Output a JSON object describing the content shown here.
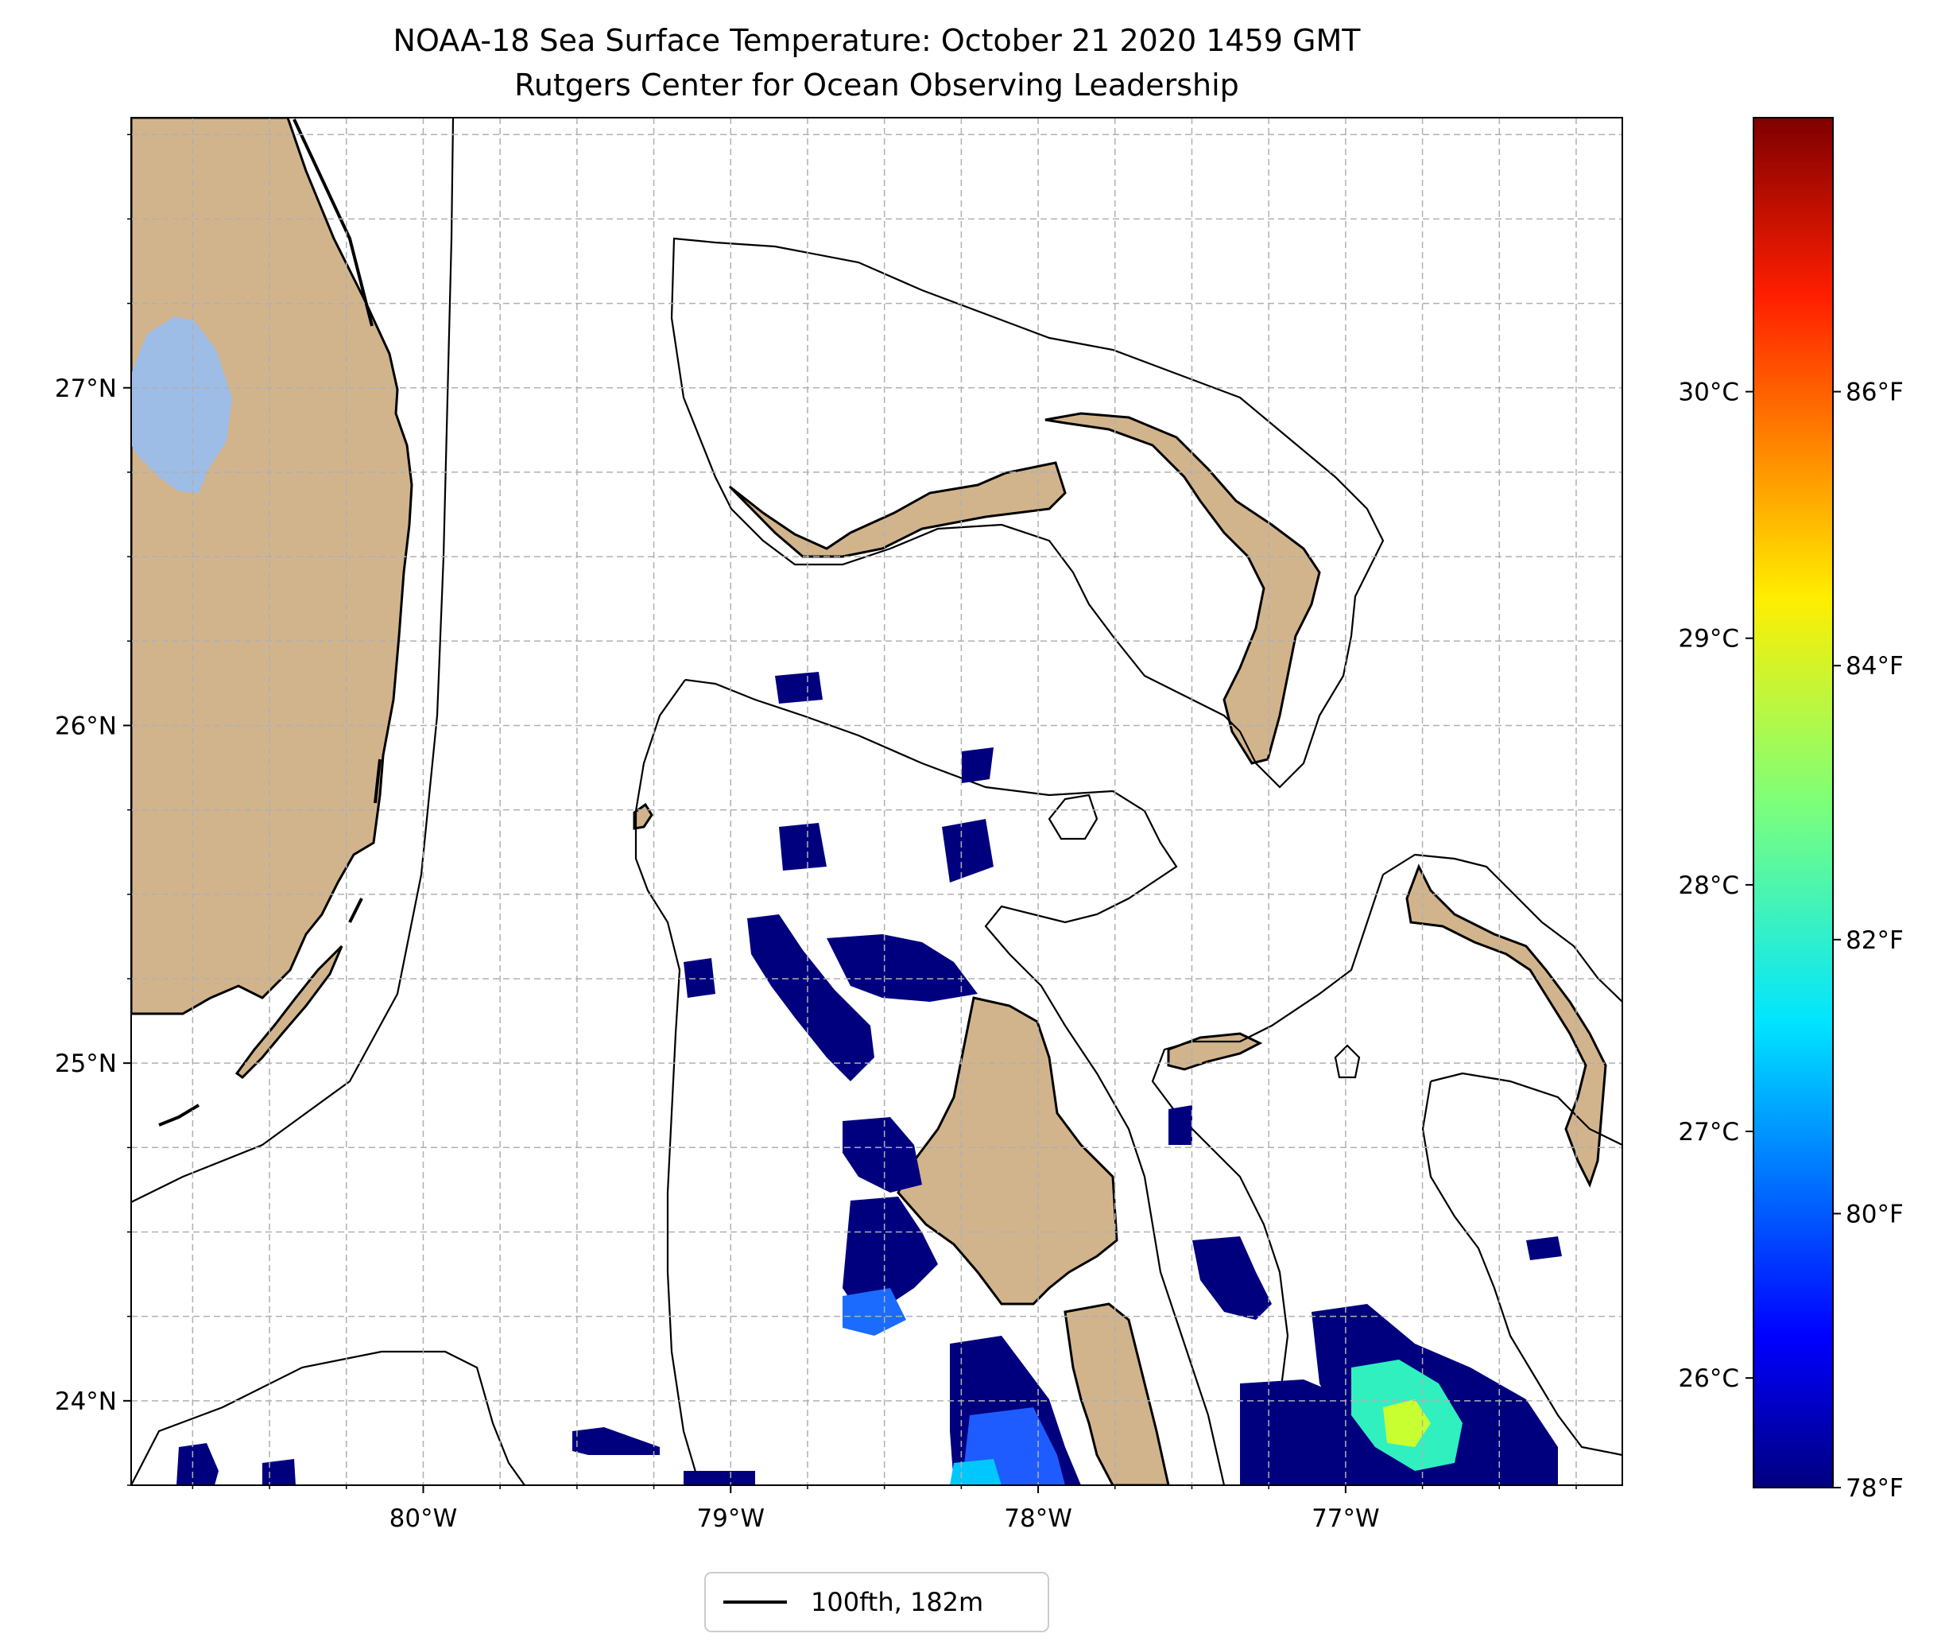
{
  "title": {
    "line1": "NOAA-18 Sea Surface Temperature: October 21 2020 1459 GMT",
    "line2": "Rutgers Center for Ocean Observing Leadership"
  },
  "map": {
    "lon_range": [
      -80.95,
      -76.1
    ],
    "lat_range": [
      23.75,
      27.8
    ],
    "lon_ticks": [
      {
        "value": -80,
        "label": "80°W"
      },
      {
        "value": -79,
        "label": "79°W"
      },
      {
        "value": -78,
        "label": "78°W"
      },
      {
        "value": -77,
        "label": "77°W"
      }
    ],
    "lat_ticks": [
      {
        "value": 24,
        "label": "24°N"
      },
      {
        "value": 25,
        "label": "25°N"
      },
      {
        "value": 26,
        "label": "26°N"
      },
      {
        "value": 27,
        "label": "27°N"
      }
    ],
    "gridlines": true,
    "colors": {
      "land": "#d2b48c",
      "lake": "#9dbce6",
      "ocean": "#ffffff",
      "coastline": "#000000",
      "grid": "#b0b0b0"
    }
  },
  "legend": {
    "entries": [
      {
        "label": "100fth, 182m",
        "color": "#000000"
      }
    ],
    "placement": "bottom-center"
  },
  "colorbar": {
    "colormap": "jet",
    "celsius_ticks": [
      "26°C",
      "27°C",
      "28°C",
      "29°C",
      "30°C"
    ],
    "fahrenheit_ticks": [
      "78°F",
      "80°F",
      "82°F",
      "84°F",
      "86°F"
    ],
    "celsius_values": [
      26,
      27,
      28,
      29,
      30
    ],
    "fahrenheit_values": [
      78,
      80,
      82,
      84,
      86
    ],
    "range_f": [
      78,
      88
    ]
  }
}
